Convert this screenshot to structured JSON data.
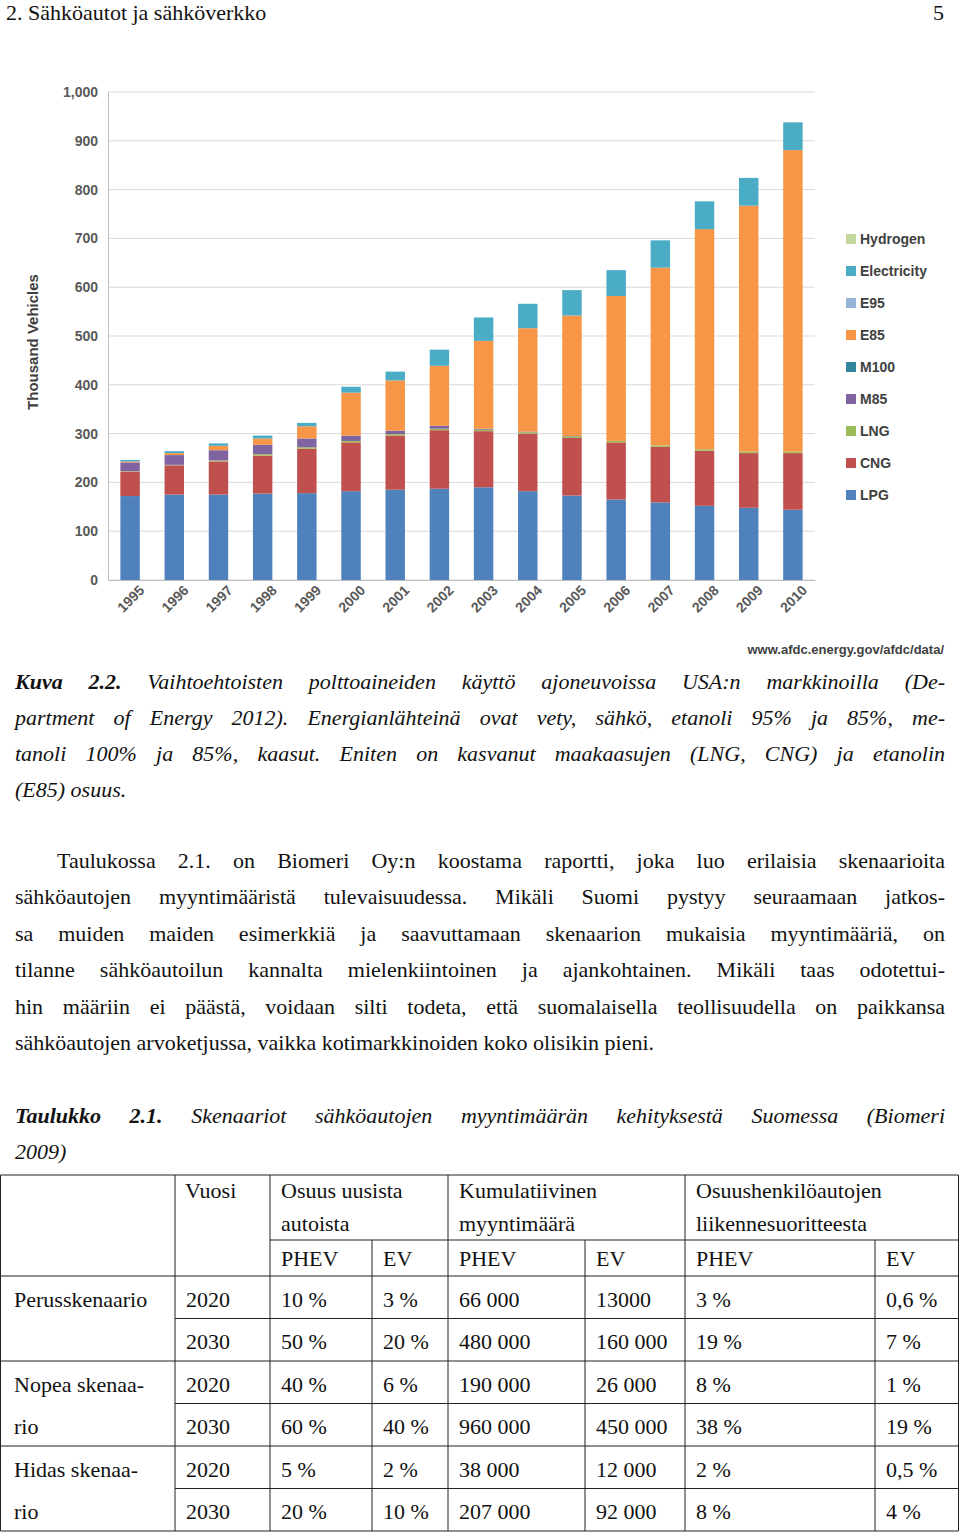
{
  "header": {
    "title": "2. Sähköautot ja sähköverkko",
    "page": "5"
  },
  "chart_data": {
    "type": "bar",
    "stacked": true,
    "ylabel": "Thousand Vehicles",
    "categories": [
      "1995",
      "1996",
      "1997",
      "1998",
      "1999",
      "2000",
      "2001",
      "2002",
      "2003",
      "2004",
      "2005",
      "2006",
      "2007",
      "2008",
      "2009",
      "2010"
    ],
    "series": [
      {
        "name": "Hydrogen",
        "color": "#c3d69b",
        "values": [
          0,
          0,
          0,
          0,
          0,
          0,
          0,
          0,
          0,
          0,
          0,
          0,
          0,
          0,
          0,
          0.5
        ]
      },
      {
        "name": "Electricity",
        "color": "#4bacc6",
        "values": [
          3,
          4,
          5,
          6,
          7,
          12,
          18,
          33,
          48,
          50,
          52,
          53,
          56,
          57,
          57,
          57
        ]
      },
      {
        "name": "E95",
        "color": "#95b3d7",
        "values": [
          0,
          0,
          0,
          0,
          0,
          0,
          0,
          0,
          0,
          0,
          0,
          0,
          0,
          0,
          0,
          0
        ]
      },
      {
        "name": "E85",
        "color": "#f79646",
        "values": [
          2,
          4,
          9,
          13,
          25,
          88,
          103,
          123,
          180,
          212,
          247,
          297,
          364,
          451,
          504,
          618
        ]
      },
      {
        "name": "M100",
        "color": "#31859c",
        "values": [
          0,
          0,
          0,
          0,
          0,
          0,
          0,
          0,
          0,
          0,
          0,
          0,
          0,
          0,
          0,
          0
        ]
      },
      {
        "name": "M85",
        "color": "#8064a2",
        "values": [
          18,
          20,
          21,
          19,
          18,
          11,
          7,
          6,
          2,
          1,
          1,
          0,
          0,
          0,
          0,
          0
        ]
      },
      {
        "name": "LNG",
        "color": "#9bbb59",
        "values": [
          1,
          1,
          2,
          3,
          3,
          3,
          3,
          3,
          3,
          3,
          3,
          3,
          3,
          3,
          3,
          3
        ]
      },
      {
        "name": "CNG",
        "color": "#c0504d",
        "values": [
          50,
          60,
          68,
          78,
          91,
          100,
          111,
          120,
          115,
          118,
          118,
          117,
          114,
          113,
          112,
          116
        ]
      },
      {
        "name": "LPG",
        "color": "#4f81bd",
        "values": [
          172,
          175,
          175,
          177,
          178,
          182,
          185,
          187,
          190,
          182,
          173,
          165,
          159,
          152,
          148,
          144
        ]
      }
    ],
    "ylim": [
      0,
      1000
    ],
    "yticks": [
      0,
      100,
      200,
      300,
      400,
      500,
      600,
      700,
      800,
      900,
      {
        "value": 1000,
        "label": "1,000"
      }
    ],
    "grid": true,
    "legend": "right",
    "annotations": [
      "www.afdc.energy.gov/afdc/data/"
    ]
  },
  "caption": {
    "label": "Kuva 2.2.",
    "lines": [
      " Vaihtoehtoisten polttoaineiden käyttö ajoneuvoissa USA:n markkinoilla (De-",
      "partment of Energy 2012). Energianlähteinä ovat vety, sähkö, etanoli 95% ja 85%, me-",
      "tanoli 100% ja 85%, kaasut. Eniten on kasvanut maakaasujen (LNG, CNG) ja etanolin",
      "(E85) osuus."
    ]
  },
  "paragraph": {
    "lines": [
      "Taulukossa 2.1. on Biomeri Oy:n koostama raportti, joka luo erilaisia skenaarioita",
      "sähköautojen myyntimääristä tulevaisuudessa. Mikäli Suomi pystyy seuraamaan jatkos-",
      "sa muiden maiden esimerkkiä ja saavuttamaan skenaarion mukaisia myyntimääriä, on",
      "tilanne sähköautoilun kannalta mielenkiintoinen ja ajankohtainen. Mikäli taas odotettui-",
      "hin määriin ei päästä, voidaan silti todeta, että suomalaisella teollisuudella on paikkansa",
      "sähköautojen arvoketjussa, vaikka kotimarkkinoiden koko olisikin pieni."
    ]
  },
  "table": {
    "caption": {
      "label": "Taulukko 2.1.",
      "lines": [
        " Skenaariot sähköautojen myyntimäärän kehityksestä Suomessa (Biomeri",
        "2009)"
      ]
    },
    "header": {
      "year": "Vuosi",
      "groups": [
        [
          "Osuus uusista",
          "autoista"
        ],
        [
          "Kumulatiivinen",
          "myyntimäärä"
        ],
        [
          "Osuushenkilöautojen",
          "liikennesuoritteesta"
        ]
      ],
      "sub": [
        "PHEV",
        "EV",
        "PHEV",
        "EV",
        "PHEV",
        "EV"
      ]
    },
    "scenarios": [
      {
        "label": [
          "Perusskenaario"
        ],
        "rows": [
          [
            "2020",
            "10 %",
            "3 %",
            "66 000",
            "13000",
            "3 %",
            "0,6 %"
          ],
          [
            "2030",
            "50 %",
            "20 %",
            "480 000",
            "160 000",
            "19 %",
            "7 %"
          ]
        ]
      },
      {
        "label": [
          "Nopea skenaa-",
          "rio"
        ],
        "rows": [
          [
            "2020",
            "40 %",
            "6 %",
            "190 000",
            "26 000",
            "8 %",
            "1 %"
          ],
          [
            "2030",
            "60 %",
            "40 %",
            "960 000",
            "450 000",
            "38 %",
            "19 %"
          ]
        ]
      },
      {
        "label": [
          "Hidas skenaa-",
          "rio"
        ],
        "rows": [
          [
            "2020",
            "5 %",
            "2 %",
            "38 000",
            "12 000",
            "2 %",
            "0,5 %"
          ],
          [
            "2030",
            "20 %",
            "10 %",
            "207 000",
            "92 000",
            "8 %",
            "4 %"
          ]
        ]
      }
    ]
  }
}
